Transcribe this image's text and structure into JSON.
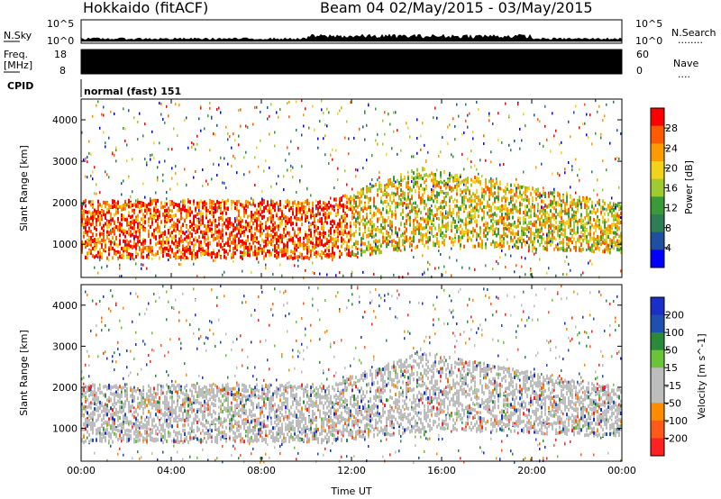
{
  "header": {
    "site": "Hokkaido (fitACF)",
    "beam_info": "Beam 04 02/May/2015 - 03/May/2015"
  },
  "top_panels": {
    "nsky_label": "N.Sky",
    "nsky_scale_top": "10^5",
    "nsky_scale_bottom": "10^0",
    "nsearch_label": "N.Search",
    "nsearch_scale_top": "10^5",
    "nsearch_scale_bottom": "10^0",
    "nsearch_dots": "........",
    "freq_label": "Freq.",
    "freq_unit": "[MHz]",
    "freq_top": "18",
    "freq_bottom": "8",
    "nave_label": "Nave",
    "nave_top": "60",
    "nave_bottom": "0",
    "nave_dots": "....",
    "cpid_label": "CPID",
    "cpid_text": "normal (fast) 151"
  },
  "colors": {
    "power_scale": [
      "#0000ff",
      "#1e4fa0",
      "#2e7d57",
      "#3a9a3a",
      "#9ccc2f",
      "#f2d21a",
      "#ff9a00",
      "#ff5a00",
      "#ff0000"
    ],
    "velocity_scale": [
      "#1a2fc8",
      "#1f4fb0",
      "#2a8a3a",
      "#6ac43a",
      "#bdbdbd",
      "#bdbdbd",
      "#ff8c00",
      "#ff5a1a",
      "#ff2222"
    ]
  },
  "chart_data": [
    {
      "type": "heatmap",
      "name": "power",
      "ylabel": "Slant Range [km]",
      "xlabel": "",
      "x_ticks": [
        "00:00",
        "04:00",
        "08:00",
        "12:00",
        "16:00",
        "20:00",
        "00:00"
      ],
      "x_range_hours": [
        0,
        24
      ],
      "y_ticks": [
        "1000",
        "2000",
        "3000",
        "4000"
      ],
      "ylim": [
        200,
        4500
      ],
      "colorbar_label": "Power [dB]",
      "colorbar_ticks": [
        "4",
        "8",
        "12",
        "16",
        "20",
        "24",
        "28"
      ],
      "colorbar_range": [
        0,
        30
      ]
    },
    {
      "type": "heatmap",
      "name": "velocity",
      "ylabel": "Slant Range [km]",
      "xlabel": "Time UT",
      "x_ticks": [
        "00:00",
        "04:00",
        "08:00",
        "12:00",
        "16:00",
        "20:00",
        "00:00"
      ],
      "x_range_hours": [
        0,
        24
      ],
      "y_ticks": [
        "1000",
        "2000",
        "3000",
        "4000"
      ],
      "ylim": [
        200,
        4500
      ],
      "colorbar_label": "Velocity [m s^-1]",
      "colorbar_ticks": [
        "200",
        "100",
        "50",
        "15",
        "-15",
        "-50",
        "-100",
        "-200"
      ],
      "colorbar_range": [
        -250,
        250
      ]
    }
  ]
}
